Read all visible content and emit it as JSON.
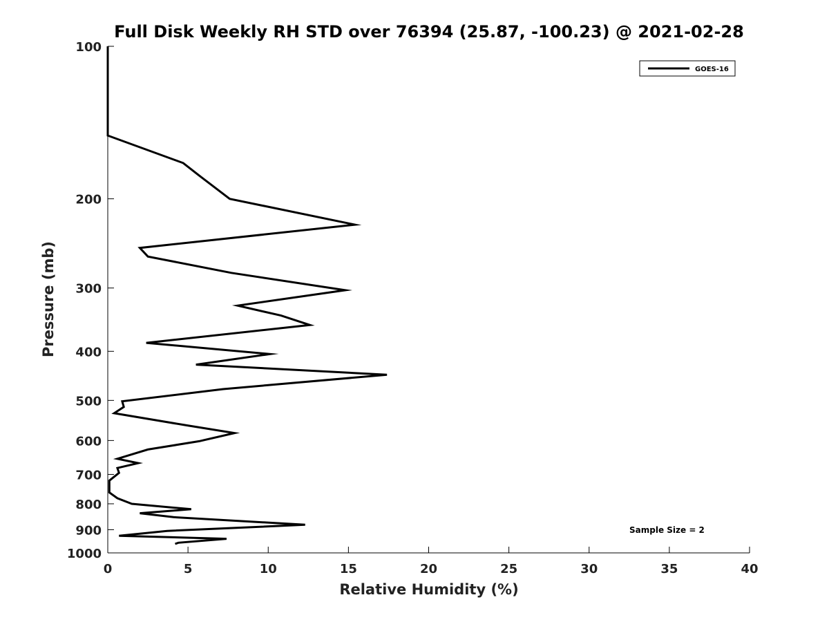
{
  "chart_data": {
    "type": "line",
    "title": "Full Disk Weekly RH STD over 76394 (25.87, -100.23) @ 2021-02-28",
    "xlabel": "Relative Humidity (%)",
    "ylabel": "Pressure (mb)",
    "xlim": [
      0,
      40
    ],
    "ylim": [
      1000,
      100
    ],
    "y_scale": "log",
    "y_reversed": true,
    "grid": false,
    "legend_position": "top-right",
    "xticks": [
      "0",
      "5",
      "10",
      "15",
      "20",
      "25",
      "30",
      "35",
      "40"
    ],
    "xtick_values": [
      0,
      5,
      10,
      15,
      20,
      25,
      30,
      35,
      40
    ],
    "yticks": [
      "100",
      "200",
      "300",
      "400",
      "500",
      "600",
      "700",
      "800",
      "900",
      "1000"
    ],
    "ytick_values": [
      100,
      200,
      300,
      400,
      500,
      600,
      700,
      800,
      900,
      1000
    ],
    "series": [
      {
        "name": "GOES-16",
        "color": "#000000",
        "points": [
          [
            0,
            100
          ],
          [
            0,
            150
          ],
          [
            4.7,
            170
          ],
          [
            5.7,
            180
          ],
          [
            7.6,
            200
          ],
          [
            15.4,
            225
          ],
          [
            2.0,
            250
          ],
          [
            2.5,
            260
          ],
          [
            7.7,
            280
          ],
          [
            14.8,
            303
          ],
          [
            8.1,
            325
          ],
          [
            10.8,
            340
          ],
          [
            12.6,
            355
          ],
          [
            2.4,
            385
          ],
          [
            10.1,
            405
          ],
          [
            5.5,
            425
          ],
          [
            17.4,
            445
          ],
          [
            7.2,
            475
          ],
          [
            0.9,
            502
          ],
          [
            1.0,
            515
          ],
          [
            0.4,
            530
          ],
          [
            4.9,
            560
          ],
          [
            7.9,
            580
          ],
          [
            5.7,
            602
          ],
          [
            2.5,
            625
          ],
          [
            0.6,
            652
          ],
          [
            1.9,
            665
          ],
          [
            0.6,
            680
          ],
          [
            0.7,
            695
          ],
          [
            0.1,
            720
          ],
          [
            0.1,
            760
          ],
          [
            0.6,
            780
          ],
          [
            1.5,
            800
          ],
          [
            5.2,
            820
          ],
          [
            2.0,
            835
          ],
          [
            4.1,
            850
          ],
          [
            12.3,
            880
          ],
          [
            3.7,
            905
          ],
          [
            0.7,
            925
          ],
          [
            7.4,
            938
          ],
          [
            4.4,
            955
          ],
          [
            4.2,
            960
          ]
        ]
      }
    ],
    "annotations": [
      "Sample Size = 2"
    ]
  }
}
